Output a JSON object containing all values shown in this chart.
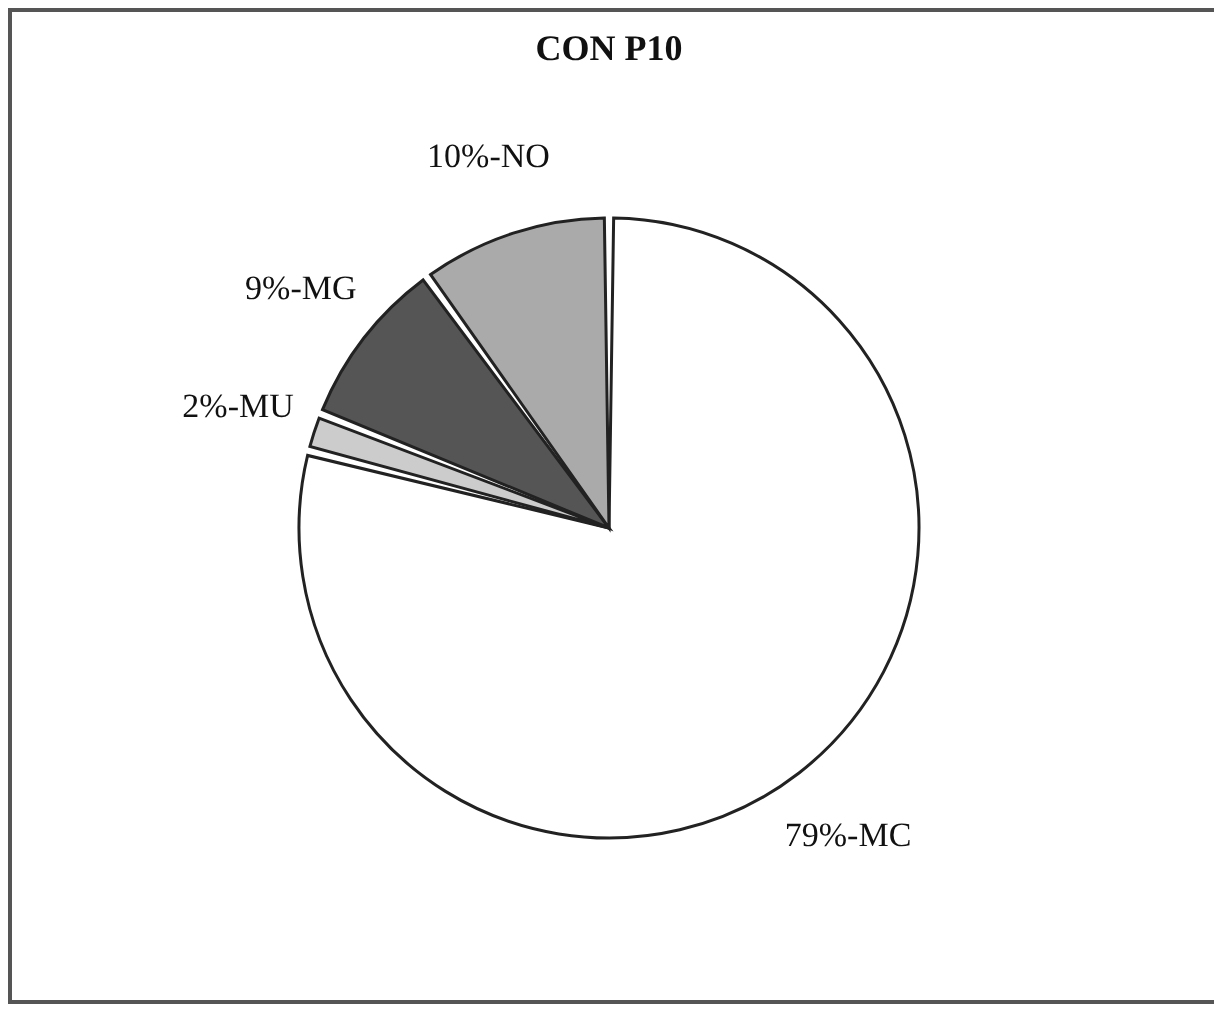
{
  "chart_data": {
    "type": "pie",
    "title": "CON P10",
    "categories": [
      "79%-MC",
      "2%-MU",
      "9%-MG",
      "10%-NO"
    ],
    "values": [
      79,
      2,
      9,
      10
    ],
    "colors": [
      "#ffffff",
      "#cccccc",
      "#555555",
      "#aaaaaa"
    ],
    "legend": false
  }
}
